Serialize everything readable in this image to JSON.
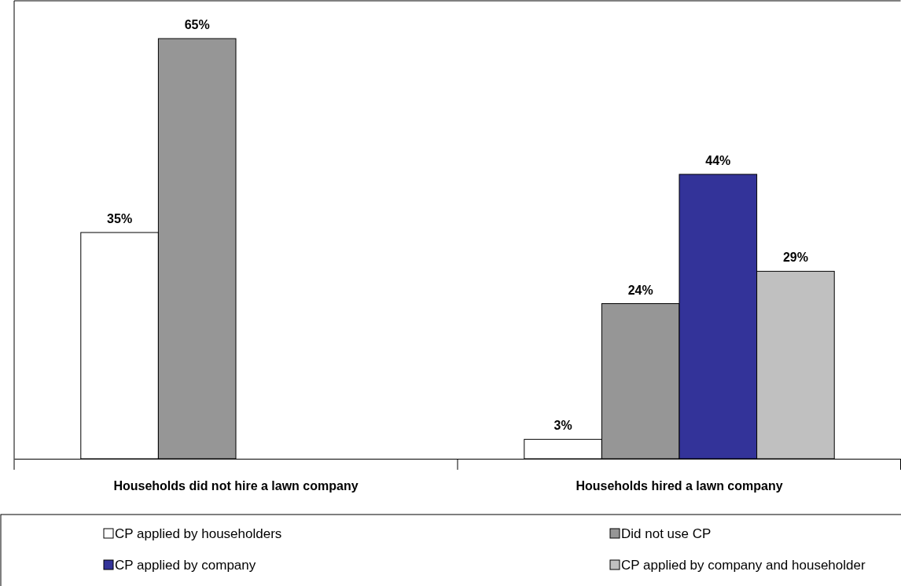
{
  "chart_data": {
    "type": "bar",
    "categories": [
      "Households did not hire a lawn company",
      "Households hired a lawn company"
    ],
    "series": [
      {
        "name": "CP applied by householders",
        "color": "#ffffff",
        "values": [
          35,
          3
        ],
        "value_labels": [
          "35%",
          "3%"
        ]
      },
      {
        "name": "Did not use CP",
        "color": "#969696",
        "values": [
          65,
          24
        ],
        "value_labels": [
          "65%",
          "24%"
        ]
      },
      {
        "name": "CP applied by company",
        "color": "#333399",
        "values": [
          null,
          44
        ],
        "value_labels": [
          null,
          "44%"
        ]
      },
      {
        "name": "CP applied by company and householder",
        "color": "#c0c0c0",
        "values": [
          null,
          29
        ],
        "value_labels": [
          null,
          "29%"
        ]
      }
    ],
    "legend": "bottom"
  }
}
